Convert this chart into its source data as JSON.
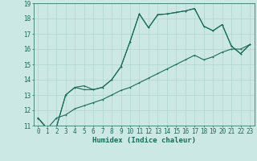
{
  "xlabel": "Humidex (Indice chaleur)",
  "x_values": [
    0,
    1,
    2,
    3,
    4,
    5,
    6,
    7,
    8,
    9,
    10,
    11,
    12,
    13,
    14,
    15,
    16,
    17,
    18,
    19,
    20,
    21,
    22,
    23
  ],
  "line1": [
    11.5,
    10.8,
    10.9,
    13.0,
    13.5,
    13.6,
    13.35,
    13.5,
    14.0,
    14.85,
    16.5,
    18.3,
    17.4,
    18.25,
    18.3,
    18.4,
    18.5,
    18.65,
    17.5,
    17.2,
    17.6,
    16.2,
    15.7,
    16.3
  ],
  "line2": [
    11.5,
    10.8,
    10.9,
    13.0,
    13.5,
    13.35,
    13.35,
    13.5,
    14.0,
    14.85,
    16.5,
    18.3,
    17.4,
    18.25,
    18.3,
    18.4,
    18.5,
    18.65,
    17.5,
    17.2,
    17.6,
    16.2,
    15.7,
    16.3
  ],
  "line3": [
    11.5,
    10.8,
    11.5,
    11.7,
    12.1,
    12.3,
    12.5,
    12.7,
    13.0,
    13.3,
    13.5,
    13.8,
    14.1,
    14.4,
    14.7,
    15.0,
    15.3,
    15.6,
    15.3,
    15.5,
    15.8,
    16.0,
    16.0,
    16.3
  ],
  "ylim": [
    11,
    19
  ],
  "yticks": [
    11,
    12,
    13,
    14,
    15,
    16,
    17,
    18,
    19
  ],
  "xlim": [
    -0.5,
    23.5
  ],
  "bg_color": "#cce8e4",
  "line_color": "#1a6b5a",
  "grid_color": "#aed4cf",
  "marker": ".",
  "tick_fontsize": 5.5,
  "xlabel_fontsize": 6.5
}
